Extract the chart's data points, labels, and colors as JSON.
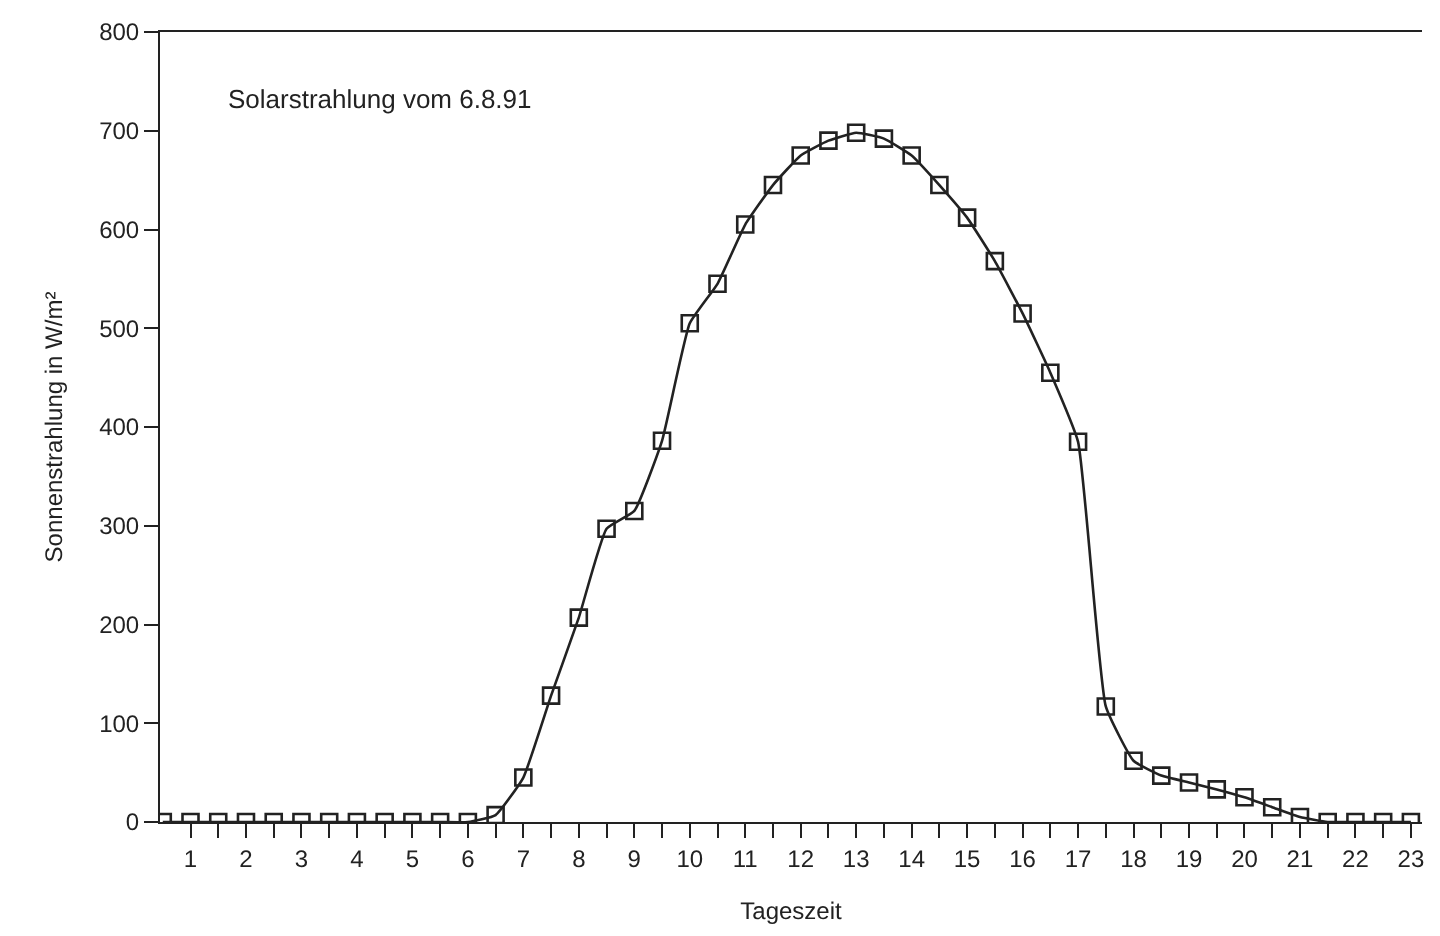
{
  "chart_data": {
    "type": "line",
    "xlabel": "Tageszeit",
    "ylabel": "Sonnenstrahlung in W/m²",
    "annotations": [
      "Solarstrahlung vom 6.8.91"
    ],
    "x": [
      0.5,
      1,
      1.5,
      2,
      2.5,
      3,
      3.5,
      4,
      4.5,
      5,
      5.5,
      6,
      6.5,
      7,
      7.5,
      8,
      8.5,
      9,
      9.5,
      10,
      10.5,
      11,
      11.5,
      12,
      12.5,
      13,
      13.5,
      14,
      14.5,
      15,
      15.5,
      16,
      16.5,
      17,
      17.5,
      18,
      18.5,
      19,
      19.5,
      20,
      20.5,
      21,
      21.5,
      22,
      22.5,
      23
    ],
    "series": [
      {
        "color": "#222222",
        "values": [
          0,
          0,
          0,
          0,
          0,
          0,
          0,
          0,
          0,
          0,
          0,
          0,
          7,
          45,
          128,
          207,
          297,
          315,
          386,
          505,
          545,
          605,
          645,
          675,
          690,
          698,
          692,
          675,
          645,
          612,
          568,
          515,
          455,
          385,
          117,
          62,
          47,
          40,
          33,
          25,
          15,
          5,
          0,
          0,
          0,
          0
        ]
      }
    ],
    "xlim": [
      0.45,
      23.2
    ],
    "xticks": [
      1,
      {
        "value": 1.5,
        "label": null
      },
      2,
      {
        "value": 2.5,
        "label": null
      },
      3,
      {
        "value": 3.5,
        "label": null
      },
      4,
      {
        "value": 4.5,
        "label": null
      },
      5,
      {
        "value": 5.5,
        "label": null
      },
      6,
      {
        "value": 6.5,
        "label": null
      },
      7,
      {
        "value": 7.5,
        "label": null
      },
      8,
      {
        "value": 8.5,
        "label": null
      },
      9,
      {
        "value": 9.5,
        "label": null
      },
      10,
      {
        "value": 10.5,
        "label": null
      },
      11,
      {
        "value": 11.5,
        "label": null
      },
      12,
      {
        "value": 12.5,
        "label": null
      },
      13,
      {
        "value": 13.5,
        "label": null
      },
      14,
      {
        "value": 14.5,
        "label": null
      },
      15,
      {
        "value": 15.5,
        "label": null
      },
      16,
      {
        "value": 16.5,
        "label": null
      },
      17,
      {
        "value": 17.5,
        "label": null
      },
      18,
      {
        "value": 18.5,
        "label": null
      },
      19,
      {
        "value": 19.5,
        "label": null
      },
      20,
      {
        "value": 20.5,
        "label": null
      },
      21,
      {
        "value": 21.5,
        "label": null
      },
      22,
      {
        "value": 22.5,
        "label": null
      },
      23
    ],
    "ylim": [
      0,
      800
    ],
    "yticks": [
      0,
      100,
      200,
      300,
      400,
      500,
      600,
      700,
      800
    ],
    "marker": "square",
    "line_style": "solid"
  }
}
